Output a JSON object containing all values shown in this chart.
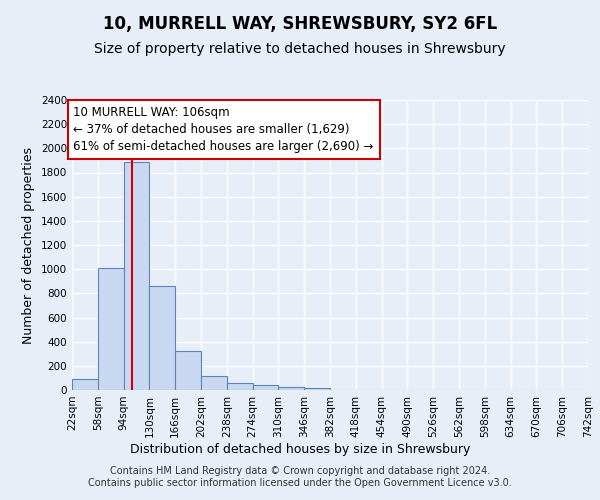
{
  "title": "10, MURRELL WAY, SHREWSBURY, SY2 6FL",
  "subtitle": "Size of property relative to detached houses in Shrewsbury",
  "xlabel": "Distribution of detached houses by size in Shrewsbury",
  "ylabel": "Number of detached properties",
  "bar_edges": [
    22,
    58,
    94,
    130,
    166,
    202,
    238,
    274,
    310,
    346,
    382,
    418,
    454,
    490,
    526,
    562,
    598,
    634,
    670,
    706,
    742
  ],
  "bar_heights": [
    90,
    1010,
    1890,
    860,
    320,
    115,
    55,
    45,
    25,
    20,
    0,
    0,
    0,
    0,
    0,
    0,
    0,
    0,
    0,
    0
  ],
  "bar_color": "#c8d8f0",
  "bar_edge_color": "#5b84bb",
  "property_line_x": 106,
  "property_line_color": "#cc0000",
  "ylim": [
    0,
    2400
  ],
  "yticks": [
    0,
    200,
    400,
    600,
    800,
    1000,
    1200,
    1400,
    1600,
    1800,
    2000,
    2200,
    2400
  ],
  "annotation_text": "10 MURRELL WAY: 106sqm\n← 37% of detached houses are smaller (1,629)\n61% of semi-detached houses are larger (2,690) →",
  "annotation_box_color": "#ffffff",
  "annotation_box_edge_color": "#cc0000",
  "background_color": "#e8eef8",
  "grid_color": "#ffffff",
  "footnote": "Contains HM Land Registry data © Crown copyright and database right 2024.\nContains public sector information licensed under the Open Government Licence v3.0.",
  "title_fontsize": 12,
  "subtitle_fontsize": 10,
  "xlabel_fontsize": 9,
  "ylabel_fontsize": 9,
  "tick_fontsize": 7.5,
  "annotation_fontsize": 8.5,
  "footnote_fontsize": 7
}
